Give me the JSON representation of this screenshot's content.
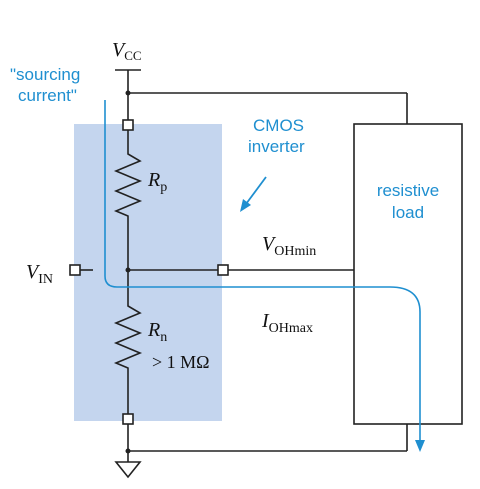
{
  "labels": {
    "vcc_main": "V",
    "vcc_sub": "CC",
    "sourcing_line1": "\"sourcing",
    "sourcing_line2": "current\"",
    "cmos_line1": "CMOS",
    "cmos_line2": "inverter",
    "rp_main": "R",
    "rp_sub": "p",
    "load_line1": "resistive",
    "load_line2": "load",
    "vohmin_main": "V",
    "vohmin_sub": "OHmin",
    "vin_main": "V",
    "vin_sub": "IN",
    "rn_main": "R",
    "rn_sub": "n",
    "rn_value": "> 1 MΩ",
    "iohmax_main": "I",
    "iohmax_sub": "OHmax"
  },
  "colors": {
    "inverter_fill": "#c4d5ee",
    "current_path": "#1f8fd0",
    "annotation_text": "#1f8fd0",
    "wire": "#222222"
  }
}
